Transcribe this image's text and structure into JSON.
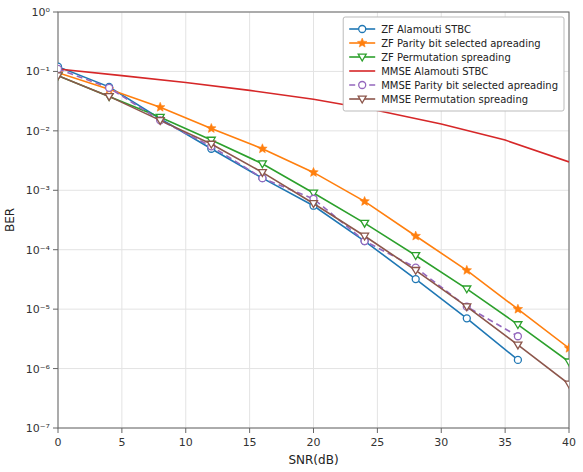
{
  "chart_data": {
    "type": "line",
    "xlabel": "SNR(dB)",
    "ylabel": "BER",
    "log": "y",
    "grid": true,
    "legend": "upper right",
    "xlim": [
      0,
      40
    ],
    "ylim": [
      1e-07,
      1
    ],
    "xticks": [
      0,
      5,
      10,
      15,
      20,
      25,
      30,
      35,
      40
    ],
    "yticks": [
      {
        "value": 1e-07,
        "label": "10⁻⁷"
      },
      {
        "value": 1e-06,
        "label": "10⁻⁶"
      },
      {
        "value": 1e-05,
        "label": "10⁻⁵"
      },
      {
        "value": 0.0001,
        "label": "10⁻⁴"
      },
      {
        "value": 0.001,
        "label": "10⁻³"
      },
      {
        "value": 0.01,
        "label": "10⁻²"
      },
      {
        "value": 0.1,
        "label": "10⁻¹"
      },
      {
        "value": 1,
        "label": "10⁰"
      }
    ],
    "series": [
      {
        "name": "ZF Alamouti STBC",
        "marker": "circle",
        "line_style": "solid",
        "x": [
          0,
          4,
          8,
          12,
          16,
          20,
          24,
          28,
          32,
          36
        ],
        "values": [
          0.12,
          0.055,
          0.016,
          0.005,
          0.0016,
          0.00055,
          0.00014,
          3.2e-05,
          7e-06,
          1.4e-06
        ]
      },
      {
        "name": "ZF Parity bit selected apreading",
        "marker": "star",
        "line_style": "solid",
        "x": [
          0,
          4,
          8,
          12,
          16,
          20,
          24,
          28,
          32,
          36,
          40
        ],
        "values": [
          0.095,
          0.05,
          0.025,
          0.011,
          0.005,
          0.002,
          0.00065,
          0.00017,
          4.5e-05,
          1e-05,
          2.2e-06
        ]
      },
      {
        "name": "ZF Permutation spreading",
        "marker": "triangle-down",
        "line_style": "solid",
        "x": [
          0,
          4,
          8,
          12,
          16,
          20,
          24,
          28,
          32,
          36,
          40
        ],
        "values": [
          0.085,
          0.038,
          0.017,
          0.007,
          0.0028,
          0.0009,
          0.00028,
          8e-05,
          2.2e-05,
          5.5e-06,
          1.3e-06
        ]
      },
      {
        "name": "MMSE Alamouti STBC",
        "marker": "none",
        "line_style": "solid",
        "x": [
          0,
          5,
          10,
          15,
          20,
          25,
          30,
          35,
          40
        ],
        "values": [
          0.11,
          0.085,
          0.065,
          0.048,
          0.034,
          0.022,
          0.013,
          0.007,
          0.003
        ]
      },
      {
        "name": "MMSE Parity bit selected apreading",
        "marker": "circle",
        "line_style": "dashed",
        "x": [
          0,
          4,
          8,
          12,
          16,
          20,
          24,
          28,
          32,
          36
        ],
        "values": [
          0.11,
          0.053,
          0.015,
          0.0055,
          0.0016,
          0.00072,
          0.00014,
          5e-05,
          1.1e-05,
          3.5e-06
        ]
      },
      {
        "name": "MMSE Permutation spreading",
        "marker": "triangle-down",
        "line_style": "solid",
        "x": [
          0,
          4,
          8,
          12,
          16,
          20,
          24,
          28,
          32,
          36,
          40
        ],
        "values": [
          0.085,
          0.038,
          0.015,
          0.006,
          0.002,
          0.0006,
          0.00017,
          4.5e-05,
          1.1e-05,
          2.5e-06,
          5.5e-07
        ]
      }
    ]
  }
}
